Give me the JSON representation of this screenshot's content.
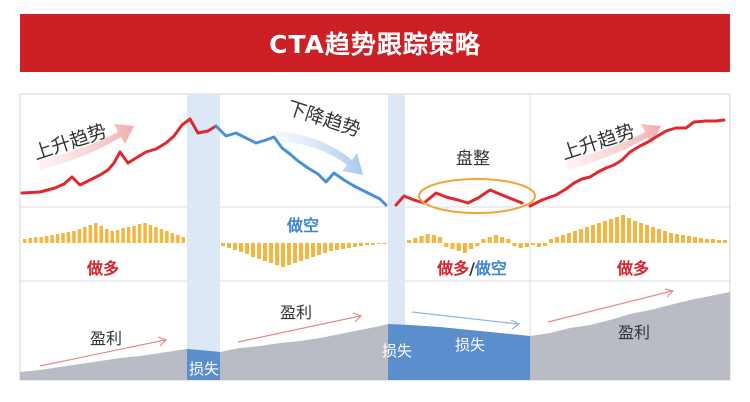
{
  "title": "CTA趋势跟踪策略",
  "colors": {
    "brand_red": "#CC2026",
    "price_line_up": "#E0292F",
    "price_line_down": "#4A90D9",
    "bar_gold": "#F2B740",
    "profit_gray": "#B9BCC4",
    "loss_blue": "#5B8ECC",
    "column_highlight": "#DCE8F5",
    "sideways_ellipse": "#F0A53C"
  },
  "phases": {
    "uptrend_1": {
      "label": "上升趋势",
      "position": "做多",
      "pnl": "盈利"
    },
    "whipsaw_1": {
      "pnl": "损失"
    },
    "downtrend": {
      "label": "下降趋势",
      "position": "做空",
      "pnl": "盈利"
    },
    "whipsaw_2": {
      "pnl": "损失"
    },
    "sideways": {
      "label": "盘整",
      "position_long": "做多",
      "position_sep": "/",
      "position_short": "做空",
      "pnl": "损失"
    },
    "uptrend_2": {
      "label": "上升趋势",
      "position": "做多",
      "pnl": "盈利"
    }
  }
}
